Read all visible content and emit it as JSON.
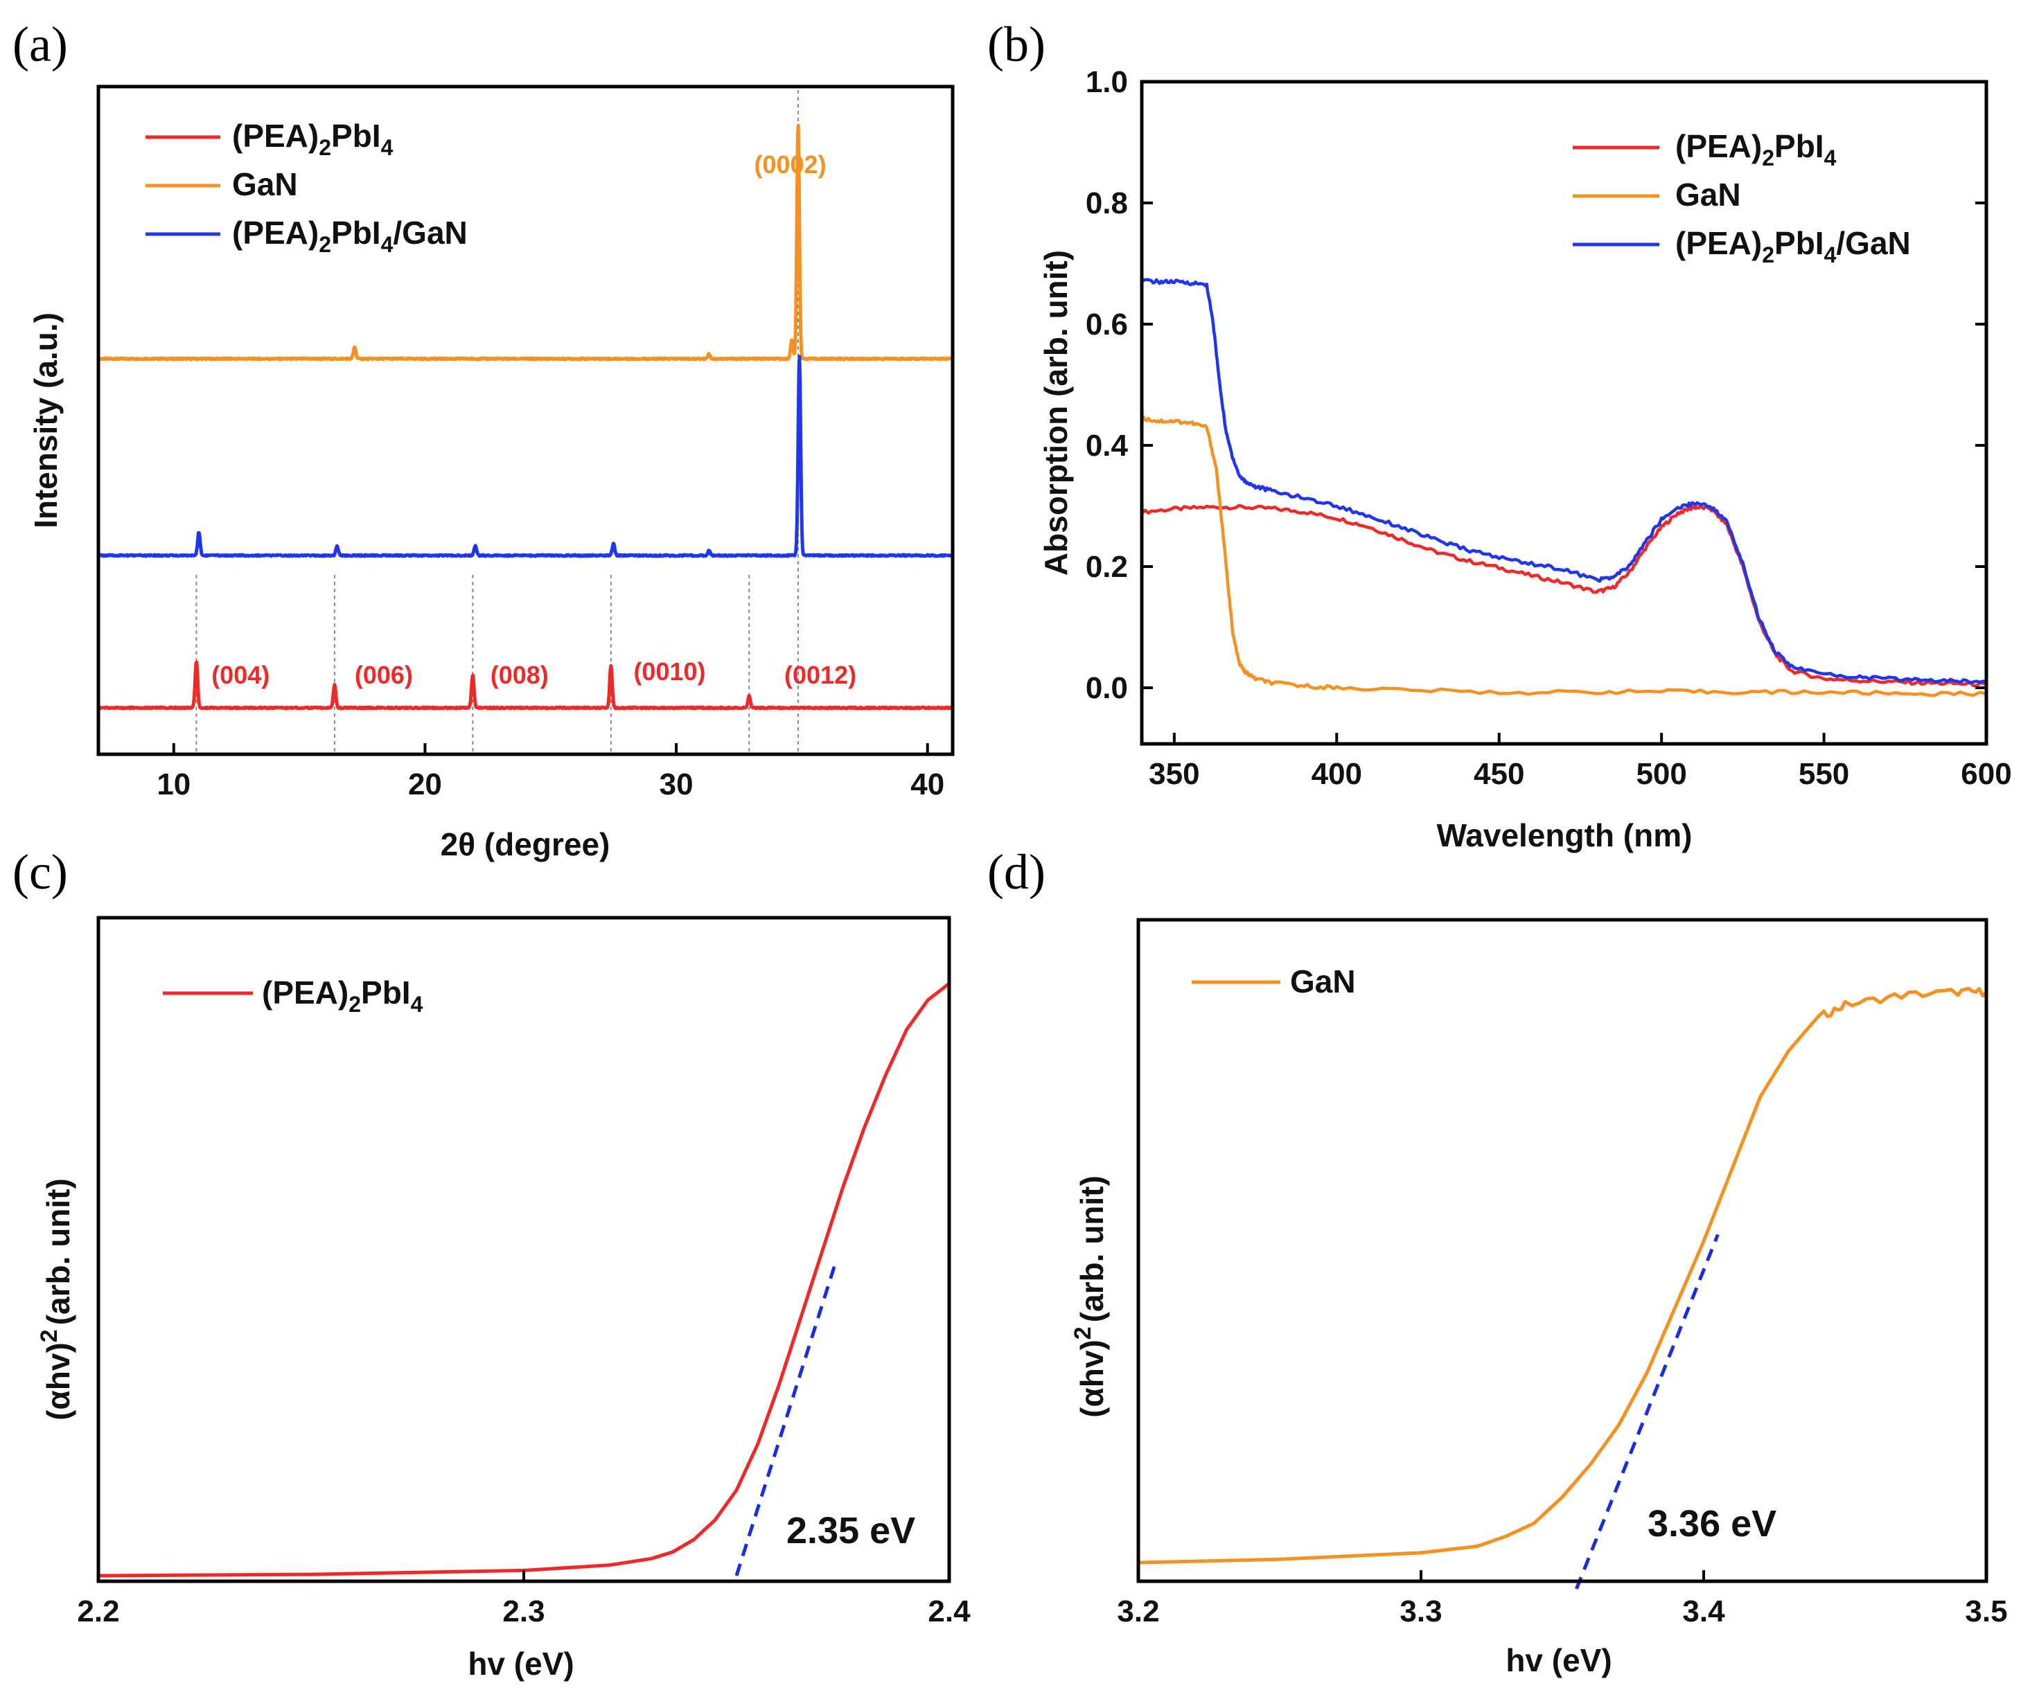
{
  "colors": {
    "pea": "#f02828",
    "gan": "#f59120",
    "combo": "#2035f0",
    "fit": "#1c2ce0"
  },
  "chart_data": [
    {
      "panel": "(a)",
      "type": "line",
      "xlabel": "2θ (degree)",
      "ylabel": "Intensity (a.u.)",
      "xlim": [
        7,
        41
      ],
      "xticks": [
        10,
        20,
        30,
        40
      ],
      "yticks": [],
      "legend_position": "top-left",
      "series": [
        {
          "name": "GaN",
          "label_main": "GaN",
          "label_sub": "",
          "label_tail": "",
          "color": "gan",
          "offset": 2.0,
          "peaks": [
            [
              17.2,
              0.05
            ],
            [
              31.3,
              0.02
            ],
            [
              34.6,
              0.08
            ],
            [
              34.85,
              1.0
            ]
          ]
        },
        {
          "name": "(PEA)2PbI4/GaN",
          "label_main": "(PEA)",
          "label_sub": "2",
          "label_tail": "PbI",
          "label_sub2": "4",
          "label_end": "/GaN",
          "color": "combo",
          "offset": 1.0,
          "peaks": [
            [
              11.0,
              0.1
            ],
            [
              16.5,
              0.04
            ],
            [
              22.0,
              0.04
            ],
            [
              27.5,
              0.05
            ],
            [
              31.3,
              0.02
            ],
            [
              34.9,
              0.85
            ]
          ]
        },
        {
          "name": "(PEA)2PbI4",
          "label_main": "(PEA)",
          "label_sub": "2",
          "label_tail": "PbI",
          "label_sub2": "4",
          "label_end": "",
          "color": "pea",
          "offset": 0.0,
          "peaks": [
            [
              10.9,
              0.2
            ],
            [
              16.4,
              0.1
            ],
            [
              21.9,
              0.14
            ],
            [
              27.4,
              0.18
            ],
            [
              32.9,
              0.05
            ]
          ]
        }
      ],
      "reference_lines": [
        10.9,
        16.4,
        21.9,
        27.4,
        32.9,
        34.85
      ],
      "annotations": [
        {
          "text": "(004)",
          "x": 11.5,
          "color": "pea"
        },
        {
          "text": "(006)",
          "x": 17.2,
          "color": "pea"
        },
        {
          "text": "(008)",
          "x": 22.6,
          "color": "pea"
        },
        {
          "text": "(0010)",
          "x": 28.3,
          "color": "pea"
        },
        {
          "text": "(0012)",
          "x": 34.3,
          "color": "pea"
        },
        {
          "text": "(0002)",
          "x": 33.1,
          "color": "gan"
        }
      ]
    },
    {
      "panel": "(b)",
      "type": "line",
      "xlabel": "Wavelength (nm)",
      "ylabel": "Absorption (arb. unit)",
      "xlim": [
        340,
        600
      ],
      "ylim": [
        -0.1,
        1.0
      ],
      "xticks": [
        350,
        400,
        450,
        500,
        550,
        600
      ],
      "yticks": [
        0.0,
        0.2,
        0.4,
        0.6,
        0.8,
        1.0
      ],
      "ytick_labels": [
        "0.0",
        "0.2",
        "0.4",
        "0.6",
        "0.8",
        "1.0"
      ],
      "legend_position": "top-right",
      "series": [
        {
          "name": "(PEA)2PbI4",
          "color": "pea",
          "x": [
            340,
            350,
            360,
            370,
            380,
            390,
            400,
            410,
            420,
            430,
            440,
            450,
            460,
            470,
            480,
            485,
            490,
            495,
            500,
            505,
            510,
            515,
            520,
            525,
            530,
            535,
            540,
            550,
            560,
            570,
            580,
            590,
            600
          ],
          "y": [
            0.29,
            0.295,
            0.298,
            0.298,
            0.296,
            0.29,
            0.28,
            0.265,
            0.245,
            0.225,
            0.21,
            0.198,
            0.185,
            0.173,
            0.158,
            0.165,
            0.19,
            0.23,
            0.265,
            0.288,
            0.298,
            0.296,
            0.27,
            0.2,
            0.11,
            0.055,
            0.028,
            0.015,
            0.012,
            0.01,
            0.008,
            0.007,
            0.005
          ]
        },
        {
          "name": "GaN",
          "color": "gan",
          "x": [
            340,
            345,
            350,
            355,
            360,
            363,
            366,
            368,
            370,
            372,
            375,
            380,
            390,
            400,
            420,
            450,
            480,
            500,
            520,
            540,
            560,
            580,
            600
          ],
          "y": [
            0.445,
            0.44,
            0.44,
            0.437,
            0.43,
            0.36,
            0.2,
            0.09,
            0.04,
            0.025,
            0.015,
            0.008,
            0.003,
            0.0,
            -0.003,
            -0.008,
            -0.007,
            -0.006,
            -0.007,
            -0.007,
            -0.008,
            -0.01,
            -0.01
          ]
        },
        {
          "name": "(PEA)2PbI4/GaN",
          "color": "combo",
          "x": [
            340,
            345,
            350,
            355,
            360,
            362,
            364,
            366,
            368,
            370,
            372,
            375,
            380,
            390,
            400,
            410,
            420,
            430,
            440,
            450,
            460,
            470,
            480,
            485,
            490,
            495,
            500,
            505,
            510,
            515,
            520,
            525,
            530,
            535,
            540,
            550,
            560,
            570,
            580,
            590,
            600
          ],
          "y": [
            0.672,
            0.67,
            0.67,
            0.668,
            0.665,
            0.6,
            0.5,
            0.42,
            0.38,
            0.35,
            0.34,
            0.332,
            0.325,
            0.313,
            0.3,
            0.283,
            0.265,
            0.245,
            0.228,
            0.215,
            0.205,
            0.195,
            0.178,
            0.182,
            0.2,
            0.24,
            0.278,
            0.297,
            0.305,
            0.3,
            0.275,
            0.205,
            0.115,
            0.06,
            0.035,
            0.022,
            0.018,
            0.015,
            0.013,
            0.011,
            0.01
          ]
        }
      ]
    },
    {
      "panel": "(c)",
      "type": "line",
      "xlabel": "hv (eV)",
      "ylabel_main": "(αhv)",
      "ylabel_sup": "2",
      "ylabel_tail": "(arb. unit)",
      "xlim": [
        2.2,
        2.4
      ],
      "xticks": [
        2.2,
        2.3,
        2.4
      ],
      "xtick_labels": [
        "2.2",
        "2.3",
        "2.4"
      ],
      "ylim": [
        0,
        1.0
      ],
      "yticks": [],
      "legend_position": "top-left",
      "gap_label": "2.35 eV",
      "series": [
        {
          "name": "(PEA)2PbI4",
          "color": "pea",
          "x": [
            2.2,
            2.25,
            2.3,
            2.32,
            2.33,
            2.335,
            2.34,
            2.345,
            2.35,
            2.355,
            2.36,
            2.365,
            2.37,
            2.375,
            2.38,
            2.385,
            2.39,
            2.395,
            2.4
          ],
          "y": [
            0.0,
            0.002,
            0.008,
            0.016,
            0.026,
            0.036,
            0.055,
            0.085,
            0.13,
            0.2,
            0.29,
            0.39,
            0.49,
            0.59,
            0.68,
            0.76,
            0.83,
            0.875,
            0.9
          ]
        }
      ],
      "fit_line": {
        "x": [
          2.35,
          2.373
        ],
        "y": [
          0.0,
          0.47
        ]
      }
    },
    {
      "panel": "(d)",
      "type": "line",
      "xlabel": "hv (eV)",
      "ylabel_main": "(αhv)",
      "ylabel_sup": "2",
      "ylabel_tail": "(arb. unit)",
      "xlim": [
        3.2,
        3.5
      ],
      "xticks": [
        3.2,
        3.3,
        3.4,
        3.5
      ],
      "xtick_labels": [
        "3.2",
        "3.3",
        "3.4",
        "3.5"
      ],
      "ylim": [
        0,
        1.0
      ],
      "yticks": [],
      "legend_position": "top-left",
      "gap_label": "3.36 eV",
      "series": [
        {
          "name": "GaN",
          "color": "gan",
          "x": [
            3.2,
            3.25,
            3.3,
            3.32,
            3.33,
            3.34,
            3.35,
            3.36,
            3.37,
            3.38,
            3.39,
            3.4,
            3.41,
            3.42,
            3.43,
            3.44,
            3.45,
            3.47,
            3.49,
            3.5
          ],
          "y": [
            0.02,
            0.025,
            0.035,
            0.045,
            0.06,
            0.08,
            0.12,
            0.17,
            0.23,
            0.31,
            0.41,
            0.51,
            0.62,
            0.73,
            0.8,
            0.85,
            0.87,
            0.885,
            0.89,
            0.89
          ]
        }
      ],
      "fit_line": {
        "x": [
          3.355,
          3.405
        ],
        "y": [
          -0.02,
          0.52
        ]
      }
    }
  ]
}
